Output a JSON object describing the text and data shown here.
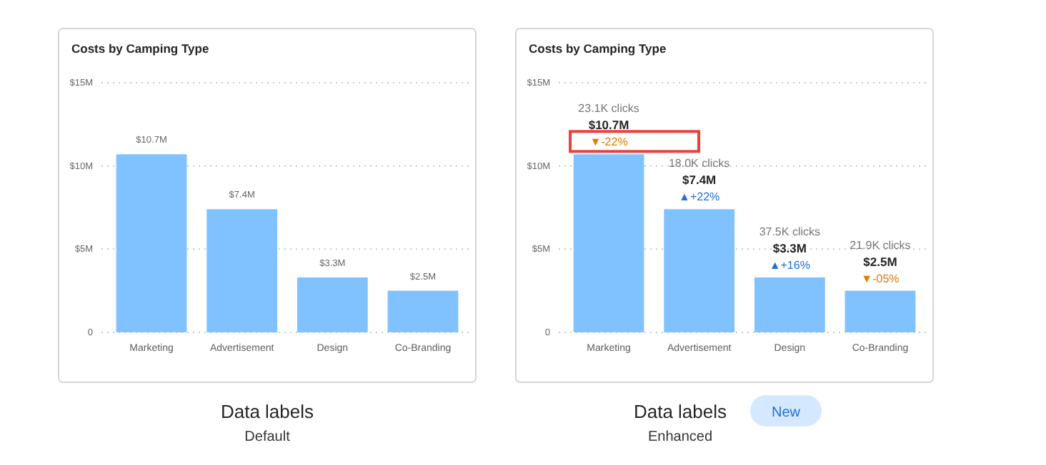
{
  "chart_data": [
    {
      "type": "bar",
      "title": "Costs by Camping Type",
      "categories": [
        "Marketing",
        "Advertisement",
        "Design",
        "Co-Branding"
      ],
      "values": [
        10.7,
        7.4,
        3.3,
        2.5
      ],
      "color": "#80c1ff",
      "value_labels": [
        "$10.7M",
        "$7.4M",
        "$3.3M",
        "$2.5M"
      ],
      "ylim": [
        0,
        15
      ],
      "yticks": [
        0,
        {
          "value": 5,
          "label": "$5M"
        },
        {
          "value": 10,
          "label": "$10M"
        },
        {
          "value": 15,
          "label": "$15M"
        }
      ],
      "grid": "y",
      "annotations": [
        "Data labels",
        "Default"
      ]
    },
    {
      "type": "bar",
      "title": "Costs by Camping Type",
      "categories": [
        "Marketing",
        "Advertisement",
        "Design",
        "Co-Branding"
      ],
      "values": [
        10.7,
        7.4,
        3.3,
        2.5
      ],
      "color": "#80c1ff",
      "value_labels": [
        "$10.7M",
        "$7.4M",
        "$3.3M",
        "$2.5M"
      ],
      "ylim": [
        0,
        15
      ],
      "yticks": [
        0,
        {
          "value": 5,
          "label": "$5M"
        },
        {
          "value": 10,
          "label": "$10M"
        },
        {
          "value": 15,
          "label": "$15M"
        }
      ],
      "grid": "y",
      "annotations": [
        "23.1K clicks",
        "▼-22%",
        "18.0K clicks",
        "▲+22%",
        "37.5K clicks",
        "▲+16%",
        "21.9K clicks",
        "▼-05%",
        "Data labels",
        "Enhanced",
        "New"
      ]
    }
  ]
}
